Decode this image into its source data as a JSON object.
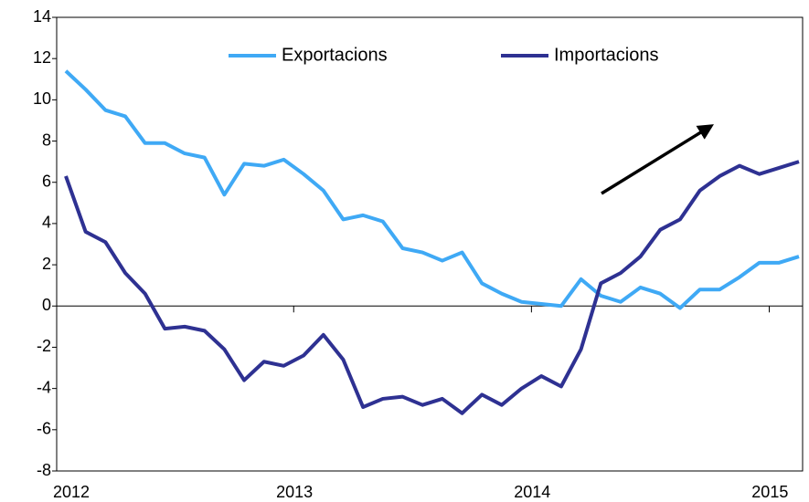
{
  "chart_data": {
    "type": "line",
    "categories": [
      "2012",
      null,
      null,
      null,
      null,
      null,
      null,
      null,
      null,
      null,
      null,
      null,
      "2013",
      null,
      null,
      null,
      null,
      null,
      null,
      null,
      null,
      null,
      null,
      null,
      "2014",
      null,
      null,
      null,
      null,
      null,
      null,
      null,
      null,
      null,
      null,
      null,
      "2015",
      null
    ],
    "series": [
      {
        "name": "Exportacions",
        "color": "#3fa9f5",
        "values": [
          11.4,
          10.5,
          9.5,
          9.2,
          7.9,
          7.9,
          7.4,
          7.2,
          5.4,
          6.9,
          6.8,
          7.1,
          6.4,
          5.6,
          4.2,
          4.4,
          4.1,
          2.8,
          2.6,
          2.2,
          2.6,
          1.1,
          0.6,
          0.2,
          0.1,
          0.0,
          1.3,
          0.5,
          0.2,
          0.9,
          0.6,
          -0.1,
          0.8,
          0.8,
          1.4,
          2.1,
          2.1,
          2.4
        ]
      },
      {
        "name": "Importacions",
        "color": "#2e3192",
        "values": [
          6.3,
          3.6,
          3.1,
          1.6,
          0.6,
          -1.1,
          -1.0,
          -1.2,
          -2.1,
          -3.6,
          -2.7,
          -2.9,
          -2.4,
          -1.4,
          -2.6,
          -4.9,
          -4.5,
          -4.4,
          -4.8,
          -4.5,
          -5.2,
          -4.3,
          -4.8,
          -4.0,
          -3.4,
          -3.9,
          -2.1,
          1.1,
          1.6,
          2.4,
          3.7,
          4.2,
          5.6,
          6.3,
          6.8,
          6.4,
          6.7,
          7.0
        ]
      }
    ],
    "ylim": [
      -8,
      14
    ],
    "yticks": [
      -8,
      -6,
      -4,
      -2,
      0,
      2,
      4,
      6,
      8,
      10,
      12,
      14
    ],
    "legend": "top"
  }
}
